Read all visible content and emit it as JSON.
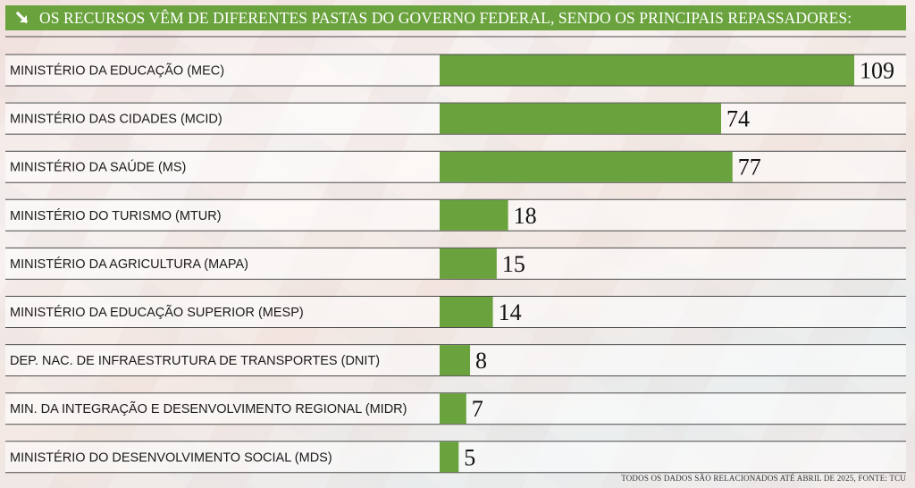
{
  "header": {
    "title": "OS RECURSOS VÊM DE DIFERENTES PASTAS DO GOVERNO FEDERAL, SENDO OS PRINCIPAIS REPASSADORES:",
    "icon": "arrow-down-right-icon"
  },
  "footer": {
    "note": "TODOS OS DADOS SÃO RELACIONADOS ATÉ ABRIL DE 2025, FONTE: TCU"
  },
  "colors": {
    "bar": "#6aa33d",
    "header_bg": "#6aa33d",
    "row_band": "#ffffff",
    "row_line": "#4a4a4a"
  },
  "chart_data": {
    "type": "bar",
    "orientation": "horizontal",
    "categories": [
      "MINISTÉRIO DA EDUCAÇÃO (MEC)",
      "MINISTÉRIO DAS CIDADES (MCID)",
      "MINISTÉRIO DA SAÚDE (MS)",
      "MINISTÉRIO DO TURISMO (MTUR)",
      "MINISTÉRIO DA AGRICULTURA (MAPA)",
      "MINISTÉRIO DA EDUCAÇÃO SUPERIOR (MESP)",
      "DEP. NAC. DE INFRAESTRUTURA DE TRANSPORTES (DNIT)",
      "MIN. DA INTEGRAÇÃO E DESENVOLVIMENTO REGIONAL (MIDR)",
      "MINISTÉRIO DO DESENVOLVIMENTO SOCIAL (MDS)"
    ],
    "values": [
      109,
      74,
      77,
      18,
      15,
      14,
      8,
      7,
      5
    ],
    "value_labels": [
      "109",
      "74",
      "77",
      "18",
      "15",
      "14",
      "8",
      "7",
      "5"
    ],
    "xlim": [
      0,
      109
    ],
    "grid": false,
    "legend": "none"
  }
}
